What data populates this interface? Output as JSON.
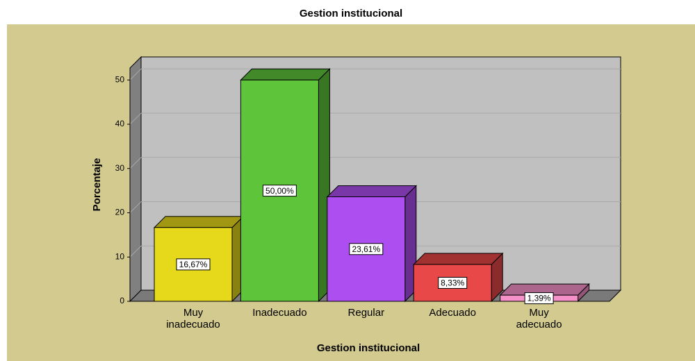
{
  "chart_data": {
    "type": "bar3d",
    "title": "Gestion institucional",
    "categories": [
      "Muy inadecuado",
      "Inadecuado",
      "Regular",
      "Adecuado",
      "Muy adecuado"
    ],
    "values": [
      16.67,
      50,
      23.61,
      8.33,
      1.39
    ],
    "value_labels": [
      "16,67%",
      "50,00%",
      "23,61%",
      "8,33%",
      "1,39%"
    ],
    "colors": [
      "#e6d81a",
      "#5ec43a",
      "#ad4ff0",
      "#e84848",
      "#f590c8"
    ],
    "xlabel": "Gestion institucional",
    "ylabel": "Porcentaje",
    "ylim": [
      0,
      52.7
    ],
    "yticks": [
      0,
      10,
      20,
      30,
      40,
      50
    ],
    "grid": true
  }
}
